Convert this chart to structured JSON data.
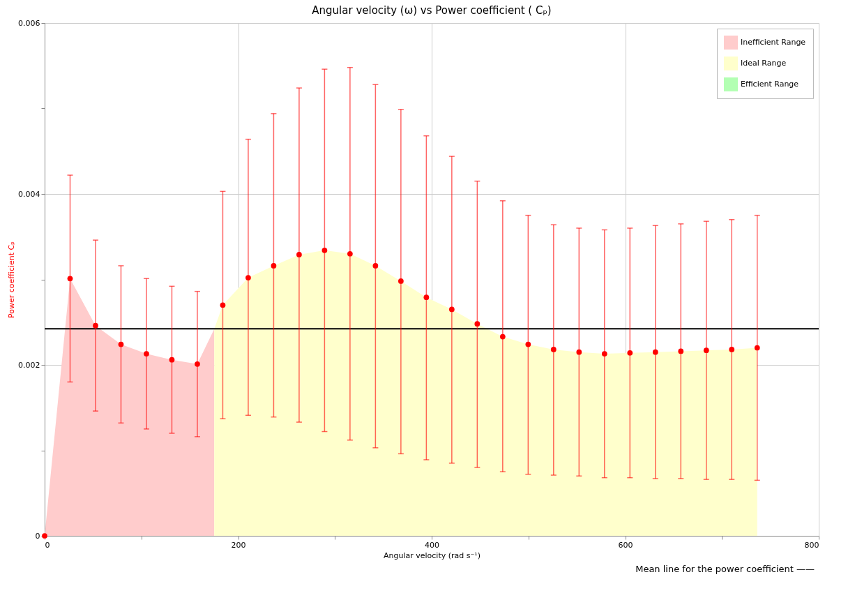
{
  "chart_data": {
    "type": "scatter",
    "title": "Angular velocity (ω) vs Power coefficient ( Cₚ)",
    "xlabel": "Angular velocity (rad s⁻¹)",
    "ylabel": "Power coefficient Cₚ",
    "xlim": [
      0,
      800
    ],
    "xticks": [
      0,
      {
        "value": 100,
        "label": null
      },
      200,
      {
        "value": 300,
        "label": null
      },
      400,
      {
        "value": 500,
        "label": null
      },
      600,
      {
        "value": 700,
        "label": null
      },
      800
    ],
    "ylim": [
      0,
      0.006
    ],
    "yticks": [
      0,
      {
        "value": 0.001,
        "label": null
      },
      0.002,
      {
        "value": 0.003,
        "label": null
      },
      0.004,
      {
        "value": 0.005,
        "label": null
      },
      0.006
    ],
    "grid": true,
    "legend": "top right",
    "series": [
      {
        "type": "area",
        "name": "Inefficient Range",
        "color": "#ffcccc",
        "x": [
          0,
          26.3,
          52.6,
          78.9,
          105.2,
          131.5,
          157.8,
          175.3
        ],
        "values": [
          0,
          0.00301,
          0.00246,
          0.00224,
          0.00213,
          0.00206,
          0.00201,
          0.00242
        ]
      },
      {
        "type": "area",
        "name": "Ideal Range",
        "color": "#ffffcc",
        "x": [
          175.3,
          184.1,
          210.4,
          236.7,
          263.0,
          289.3,
          315.6,
          341.9,
          368.2,
          394.5,
          420.8,
          447.1,
          473.4,
          499.7,
          526.0,
          552.3,
          578.6,
          604.9,
          631.2,
          657.5,
          683.8,
          710.1,
          736.4
        ],
        "values": [
          0.00242,
          0.0027,
          0.00302,
          0.00316,
          0.00329,
          0.00334,
          0.0033,
          0.00316,
          0.00298,
          0.00279,
          0.00265,
          0.00248,
          0.00233,
          0.00224,
          0.00218,
          0.00215,
          0.00213,
          0.00214,
          0.00215,
          0.00216,
          0.00217,
          0.00218,
          0.0022
        ]
      },
      {
        "type": "area",
        "name": "Efficient Range",
        "color": "#b3ffb3"
      },
      {
        "color": "#ff0000",
        "marker": "circle",
        "x": [
          0,
          26.3,
          52.6,
          78.9,
          105.2,
          131.5,
          157.8,
          184.1,
          210.4,
          236.7,
          263.0,
          289.3,
          315.6,
          341.9,
          368.2,
          394.5,
          420.8,
          447.1,
          473.4,
          499.7,
          526.0,
          552.3,
          578.6,
          604.9,
          631.2,
          657.5,
          683.8,
          710.1,
          736.4
        ],
        "values": [
          0,
          0.00301,
          0.00246,
          0.00224,
          0.00213,
          0.00206,
          0.00201,
          0.0027,
          0.00302,
          0.00316,
          0.00329,
          0.00334,
          0.0033,
          0.00316,
          0.00298,
          0.00279,
          0.00265,
          0.00248,
          0.00233,
          0.00224,
          0.00218,
          0.00215,
          0.00213,
          0.00214,
          0.00215,
          0.00216,
          0.00217,
          0.00218,
          0.0022
        ],
        "errors": [
          null,
          [
            0.0018,
            0.00422
          ],
          [
            0.00146,
            0.00346
          ],
          [
            0.00132,
            0.00316
          ],
          [
            0.00125,
            0.00301
          ],
          [
            0.0012,
            0.00292
          ],
          [
            0.00116,
            0.00286
          ],
          [
            0.00137,
            0.00403
          ],
          [
            0.00141,
            0.00464
          ],
          [
            0.00139,
            0.00494
          ],
          [
            0.00133,
            0.00524
          ],
          [
            0.00122,
            0.00546
          ],
          [
            0.00112,
            0.00548
          ],
          [
            0.00103,
            0.00528
          ],
          [
            0.00096,
            0.00499
          ],
          [
            0.00089,
            0.00468
          ],
          [
            0.00085,
            0.00444
          ],
          [
            0.0008,
            0.00415
          ],
          [
            0.00075,
            0.00392
          ],
          [
            0.00072,
            0.00375
          ],
          [
            0.00071,
            0.00364
          ],
          [
            0.0007,
            0.0036
          ],
          [
            0.00068,
            0.00358
          ],
          [
            0.00068,
            0.0036
          ],
          [
            0.00067,
            0.00363
          ],
          [
            0.00067,
            0.00365
          ],
          [
            0.00066,
            0.00368
          ],
          [
            0.00066,
            0.0037
          ],
          [
            0.00065,
            0.00375
          ]
        ]
      }
    ],
    "ref_lines": [
      {
        "axis": "y",
        "value": 0.002423,
        "color": "#000000"
      }
    ],
    "annotations": [
      "Mean line for the power coefficient ——"
    ]
  }
}
